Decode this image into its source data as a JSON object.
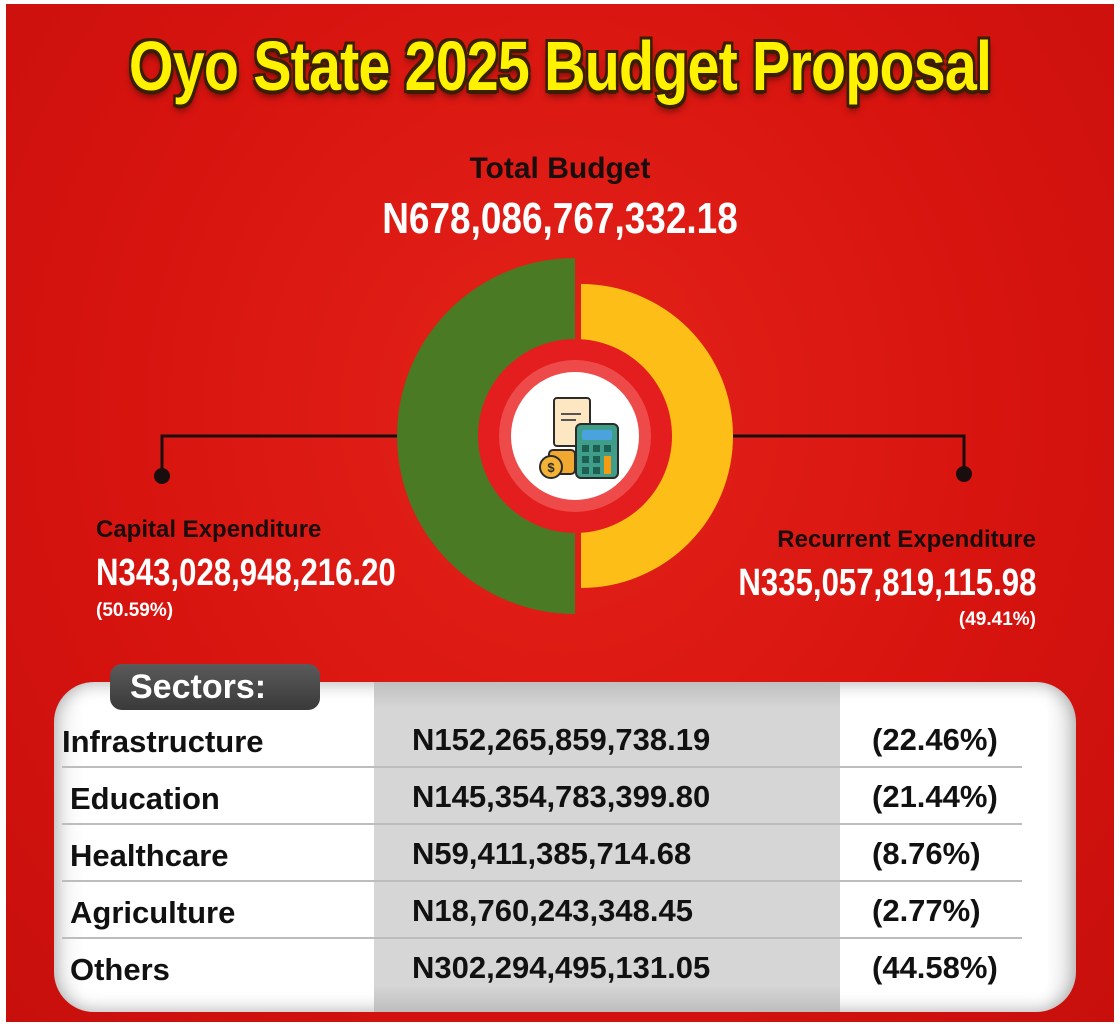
{
  "title": "Oyo State 2025 Budget Proposal",
  "total_budget": {
    "label": "Total Budget",
    "value": "N678,086,767,332.18"
  },
  "chart_data": {
    "type": "pie",
    "style": "donut",
    "title": "Oyo State 2025 Budget Proposal",
    "categories": [
      "Capital Expenditure",
      "Recurrent Expenditure"
    ],
    "values": [
      343028948216.2,
      335057819115.98
    ],
    "percent": [
      50.59,
      49.41
    ],
    "colors": [
      "#4a7a23",
      "#fdbf17"
    ],
    "center_icon": "budget-calculator-icon"
  },
  "capital": {
    "label": "Capital Expenditure",
    "value": "N343,028,948,216.20",
    "pct": "(50.59%)"
  },
  "recurrent": {
    "label": "Recurrent Expenditure",
    "value": "N335,057,819,115.98",
    "pct": "(49.41%)"
  },
  "sectors": {
    "heading": "Sectors:",
    "rows": [
      {
        "name": "Infrastructure",
        "amount": "N152,265,859,738.19",
        "pct": "(22.46%)"
      },
      {
        "name": "Education",
        "amount": "N145,354,783,399.80",
        "pct": "(21.44%)"
      },
      {
        "name": "Healthcare",
        "amount": "N59,411,385,714.68",
        "pct": "(8.76%)"
      },
      {
        "name": "Agriculture",
        "amount": "N18,760,243,348.45",
        "pct": "(2.77%)"
      },
      {
        "name": "Others",
        "amount": "N302,294,495,131.05",
        "pct": "(44.58%)"
      }
    ]
  }
}
